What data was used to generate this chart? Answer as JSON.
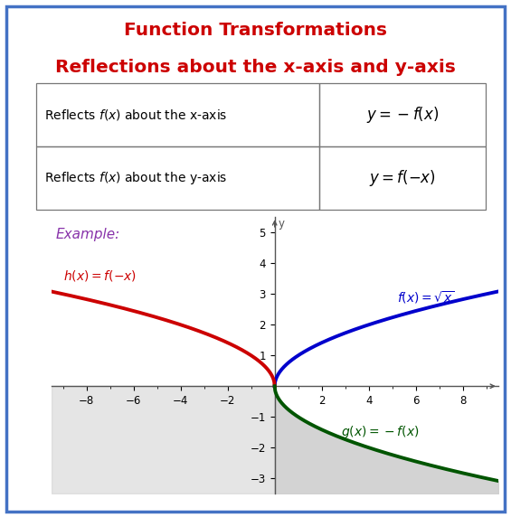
{
  "title_line1": "Function Transformations",
  "title_line2": "Reflections about the x-axis and y-axis",
  "title_color": "#cc0000",
  "title_fontsize": 14.5,
  "border_color": "#4472c4",
  "background_color": "#ffffff",
  "table_row1_left": "Reflects $\\mathit{f(x)}$ about the x-axis",
  "table_row1_right": "$y=-f(x)$",
  "table_row2_left": "Reflects $\\mathit{f(x)}$ about the y-axis",
  "table_row2_right": "$y=f(-x)$",
  "example_label": "Example:",
  "example_color": "#8833aa",
  "graph_xlim": [
    -9.5,
    9.5
  ],
  "graph_ylim": [
    -3.5,
    5.5
  ],
  "graph_xticks": [
    -8,
    -6,
    -4,
    -2,
    2,
    4,
    6,
    8
  ],
  "graph_yticks": [
    -3,
    -2,
    -1,
    1,
    2,
    3,
    4,
    5
  ],
  "blue_label": "$f(x)=\\sqrt{x}$",
  "blue_color": "#0000cc",
  "red_label": "$h(x)=f(-x)$",
  "red_color": "#cc0000",
  "green_label": "$g(x)=-f(x)$",
  "green_color": "#005500",
  "shaded_color": "#cccccc",
  "axis_color": "#555555",
  "tick_fontsize": 8.5,
  "graph_label_fontsize": 10
}
